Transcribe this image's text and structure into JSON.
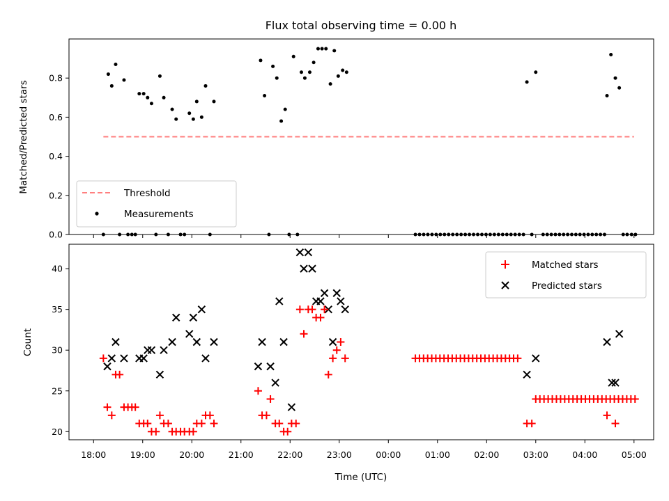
{
  "chart_data": [
    {
      "type": "scatter",
      "title": "Flux total observing time = 0.00 h",
      "xlabel": "",
      "ylabel": "Matched/Predicted stars",
      "x_unit": "hours from 18:00 UTC",
      "xlim": [
        17.5,
        29.4
      ],
      "ylim": [
        0.0,
        1.0
      ],
      "yticks": [
        0.0,
        0.2,
        0.4,
        0.6,
        0.8
      ],
      "ytick_labels": [
        "0.0",
        "0.2",
        "0.4",
        "0.6",
        "0.8"
      ],
      "legend_position": "lower-left",
      "threshold": {
        "name": "Threshold",
        "value": 0.5,
        "x_range": [
          0.2,
          11.0
        ],
        "color": "#ff7f7f",
        "style": "dashed"
      },
      "series": [
        {
          "name": "Measurements",
          "color": "#000000",
          "marker": "dot",
          "points": [
            [
              0.2,
              0.0
            ],
            [
              0.3,
              0.82
            ],
            [
              0.37,
              0.76
            ],
            [
              0.45,
              0.87
            ],
            [
              0.53,
              0.0
            ],
            [
              0.62,
              0.79
            ],
            [
              0.7,
              0.0
            ],
            [
              0.78,
              0.0
            ],
            [
              0.85,
              0.0
            ],
            [
              0.93,
              0.72
            ],
            [
              1.02,
              0.72
            ],
            [
              1.1,
              0.7
            ],
            [
              1.18,
              0.67
            ],
            [
              1.27,
              0.0
            ],
            [
              1.35,
              0.81
            ],
            [
              1.43,
              0.7
            ],
            [
              1.52,
              0.0
            ],
            [
              1.6,
              0.64
            ],
            [
              1.68,
              0.59
            ],
            [
              1.77,
              0.0
            ],
            [
              1.85,
              0.0
            ],
            [
              1.95,
              0.62
            ],
            [
              2.03,
              0.59
            ],
            [
              2.1,
              0.68
            ],
            [
              2.2,
              0.6
            ],
            [
              2.28,
              0.76
            ],
            [
              2.37,
              0.0
            ],
            [
              2.45,
              0.68
            ],
            [
              3.4,
              0.89
            ],
            [
              3.48,
              0.71
            ],
            [
              3.57,
              0.0
            ],
            [
              3.65,
              0.86
            ],
            [
              3.73,
              0.8
            ],
            [
              3.82,
              0.58
            ],
            [
              3.9,
              0.64
            ],
            [
              3.98,
              0.0
            ],
            [
              4.07,
              0.91
            ],
            [
              4.15,
              0.0
            ],
            [
              4.23,
              0.83
            ],
            [
              4.3,
              0.8
            ],
            [
              4.4,
              0.83
            ],
            [
              4.48,
              0.88
            ],
            [
              4.57,
              0.95
            ],
            [
              4.65,
              0.95
            ],
            [
              4.73,
              0.95
            ],
            [
              4.82,
              0.77
            ],
            [
              4.9,
              0.94
            ],
            [
              4.98,
              0.81
            ],
            [
              5.07,
              0.84
            ],
            [
              5.15,
              0.83
            ],
            [
              8.82,
              0.78
            ],
            [
              8.92,
              0.0
            ],
            [
              9.0,
              0.83
            ],
            [
              10.45,
              0.71
            ],
            [
              10.53,
              0.92
            ],
            [
              10.62,
              0.8
            ],
            [
              10.7,
              0.75
            ],
            [
              10.78,
              0.0
            ],
            [
              10.86,
              0.0
            ],
            [
              10.95,
              0.0
            ],
            [
              11.03,
              0.0
            ]
          ],
          "zero_runs": [
            {
              "start": 6.55,
              "end": 8.75,
              "step": 0.0846
            },
            {
              "start": 9.15,
              "end": 10.4,
              "step": 0.0833
            }
          ]
        }
      ]
    },
    {
      "type": "scatter",
      "title": "",
      "xlabel": "Time (UTC)",
      "ylabel": "Count",
      "x_unit": "hours from 18:00 UTC",
      "xlim": [
        17.5,
        29.4
      ],
      "ylim": [
        19.0,
        43.0
      ],
      "yticks": [
        20,
        25,
        30,
        35,
        40
      ],
      "ytick_labels": [
        "20",
        "25",
        "30",
        "35",
        "40"
      ],
      "xticks": [
        18,
        19,
        20,
        21,
        22,
        23,
        24,
        25,
        26,
        27,
        28,
        29
      ],
      "xtick_labels": [
        "18:00",
        "19:00",
        "20:00",
        "21:00",
        "22:00",
        "23:00",
        "00:00",
        "01:00",
        "02:00",
        "03:00",
        "04:00",
        "05:00"
      ],
      "legend_position": "top-right",
      "series": [
        {
          "name": "Matched stars",
          "color": "#ff0000",
          "marker": "plus",
          "points": [
            [
              0.2,
              29
            ],
            [
              0.28,
              23
            ],
            [
              0.37,
              22
            ],
            [
              0.45,
              27
            ],
            [
              0.53,
              27
            ],
            [
              0.62,
              23
            ],
            [
              0.7,
              23
            ],
            [
              0.78,
              23
            ],
            [
              0.85,
              23
            ],
            [
              0.93,
              21
            ],
            [
              1.02,
              21
            ],
            [
              1.1,
              21
            ],
            [
              1.18,
              20
            ],
            [
              1.27,
              20
            ],
            [
              1.35,
              22
            ],
            [
              1.43,
              21
            ],
            [
              1.52,
              21
            ],
            [
              1.6,
              20
            ],
            [
              1.68,
              20
            ],
            [
              1.77,
              20
            ],
            [
              1.85,
              20
            ],
            [
              1.95,
              20
            ],
            [
              2.03,
              20
            ],
            [
              2.1,
              21
            ],
            [
              2.2,
              21
            ],
            [
              2.28,
              22
            ],
            [
              2.37,
              22
            ],
            [
              2.45,
              21
            ],
            [
              3.35,
              25
            ],
            [
              3.43,
              22
            ],
            [
              3.52,
              22
            ],
            [
              3.6,
              24
            ],
            [
              3.7,
              21
            ],
            [
              3.78,
              21
            ],
            [
              3.87,
              20
            ],
            [
              3.95,
              20
            ],
            [
              4.03,
              21
            ],
            [
              4.12,
              21
            ],
            [
              4.2,
              35
            ],
            [
              4.28,
              32
            ],
            [
              4.37,
              35
            ],
            [
              4.45,
              35
            ],
            [
              4.53,
              34
            ],
            [
              4.62,
              34
            ],
            [
              4.7,
              35
            ],
            [
              4.78,
              27
            ],
            [
              4.87,
              29
            ],
            [
              4.95,
              30
            ],
            [
              5.03,
              31
            ],
            [
              5.12,
              29
            ],
            [
              8.82,
              21
            ],
            [
              8.92,
              21
            ],
            [
              10.45,
              22
            ],
            [
              10.62,
              21
            ]
          ],
          "flat_runs": [
            {
              "start": 6.55,
              "end": 8.65,
              "step": 0.0833,
              "value": 29
            },
            {
              "start": 9.0,
              "end": 11.1,
              "step": 0.0842,
              "value": 24
            }
          ]
        },
        {
          "name": "Predicted stars",
          "color": "#000000",
          "marker": "x",
          "points": [
            [
              0.28,
              28
            ],
            [
              0.37,
              29
            ],
            [
              0.45,
              31
            ],
            [
              0.62,
              29
            ],
            [
              0.93,
              29
            ],
            [
              1.02,
              29
            ],
            [
              1.1,
              30
            ],
            [
              1.18,
              30
            ],
            [
              1.35,
              27
            ],
            [
              1.43,
              30
            ],
            [
              1.6,
              31
            ],
            [
              1.68,
              34
            ],
            [
              1.95,
              32
            ],
            [
              2.03,
              34
            ],
            [
              2.1,
              31
            ],
            [
              2.2,
              35
            ],
            [
              2.28,
              29
            ],
            [
              2.45,
              31
            ],
            [
              3.35,
              28
            ],
            [
              3.43,
              31
            ],
            [
              3.6,
              28
            ],
            [
              3.7,
              26
            ],
            [
              3.78,
              36
            ],
            [
              3.87,
              31
            ],
            [
              4.03,
              23
            ],
            [
              4.2,
              42
            ],
            [
              4.28,
              40
            ],
            [
              4.37,
              42
            ],
            [
              4.45,
              40
            ],
            [
              4.53,
              36
            ],
            [
              4.62,
              36
            ],
            [
              4.7,
              37
            ],
            [
              4.78,
              35
            ],
            [
              4.87,
              31
            ],
            [
              4.95,
              37
            ],
            [
              5.03,
              36
            ],
            [
              5.12,
              35
            ],
            [
              8.82,
              27
            ],
            [
              9.0,
              29
            ],
            [
              10.45,
              31
            ],
            [
              10.55,
              26
            ],
            [
              10.62,
              26
            ],
            [
              10.7,
              32
            ]
          ]
        }
      ]
    }
  ]
}
